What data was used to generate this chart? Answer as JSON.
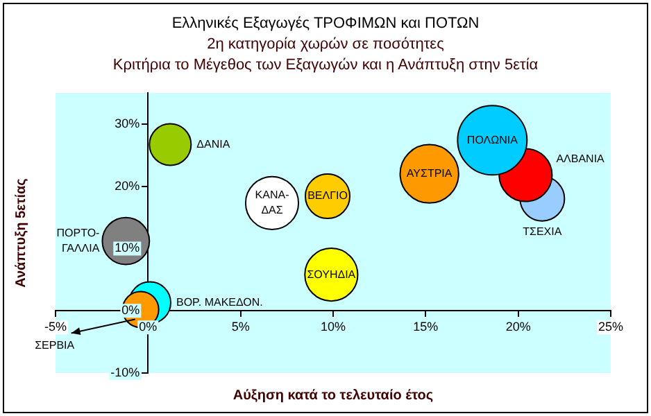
{
  "chart_data": {
    "type": "bubble",
    "title": "Ελληνικές Εξαγωγές ΤΡΟΦΙΜΩΝ και ΠΟΤΩΝ",
    "subtitle": "2η κατηγορία χωρών σε ποσότητες\nΚριτήρια το Μέγεθος των Εξαγωγών και η Ανάπτυξη στην 5ετία",
    "xlabel": "Αύξηση κατά το τελευταίο έτος",
    "ylabel": "Ανάπτυξη 5ετίας",
    "xlim": [
      -5,
      25
    ],
    "xticks": [
      {
        "value": -5,
        "label": "-5%"
      },
      {
        "value": 0,
        "label": "0%"
      },
      {
        "value": 5,
        "label": "5%"
      },
      {
        "value": 10,
        "label": "10%"
      },
      {
        "value": 15,
        "label": "15%"
      },
      {
        "value": 20,
        "label": "20%"
      },
      {
        "value": 25,
        "label": "25%"
      }
    ],
    "ylim": [
      -10,
      35
    ],
    "yticks": [
      {
        "value": -10,
        "label": "-10%"
      },
      {
        "value": 0,
        "label": "0%"
      },
      {
        "value": 10,
        "label": "10%"
      },
      {
        "value": 20,
        "label": "20%"
      },
      {
        "value": 30,
        "label": "30%"
      }
    ],
    "marker": "circle",
    "legend": false,
    "series": [
      {
        "name": "ΔΑΝΙΑ",
        "color": "#99cc00",
        "x": [
          1.2
        ],
        "values": [
          26.7
        ],
        "sizes": [
          0.36
        ]
      },
      {
        "name": "ΚΑΝΑ-\nΔΑΣ",
        "color": "#ffffff",
        "x": [
          6.7
        ],
        "values": [
          17.3
        ],
        "sizes": [
          0.58
        ]
      },
      {
        "name": "ΒΕΛΓΙΟ",
        "color": "#ffcc00",
        "x": [
          9.7
        ],
        "values": [
          18.4
        ],
        "sizes": [
          0.41
        ]
      },
      {
        "name": "ΣΟΥΗΔΙΑ",
        "color": "#ffff00",
        "x": [
          9.9
        ],
        "values": [
          5.8
        ],
        "sizes": [
          0.58
        ]
      },
      {
        "name": "ΑΥΣΤΡΙΑ",
        "color": "#ff9900",
        "x": [
          15.2
        ],
        "values": [
          22
        ],
        "sizes": [
          0.71
        ]
      },
      {
        "name": "ΠΟΛΩΝΙΑ",
        "color": "#00ccff",
        "x": [
          18.6
        ],
        "values": [
          27.4
        ],
        "sizes": [
          1
        ]
      },
      {
        "name": "ΑΛΒΑΝΙΑ",
        "color": "#ff0000",
        "x": [
          20.4
        ],
        "values": [
          21.8
        ],
        "sizes": [
          0.58
        ]
      },
      {
        "name": "ΤΣΕΧΙΑ",
        "color": "#99ccff",
        "x": [
          21.3
        ],
        "values": [
          18
        ],
        "sizes": [
          0.41
        ]
      },
      {
        "name": "ΠΟΡΤΟ-\nΓΑΛΛΙΑ",
        "color": "#808080",
        "x": [
          -1.2
        ],
        "values": [
          11.2
        ],
        "sizes": [
          0.46
        ]
      },
      {
        "name": "ΣΕΡΒΙΑ",
        "color": "#ff9900",
        "x": [
          -0.4
        ],
        "values": [
          0.2
        ],
        "sizes": [
          0.27
        ]
      },
      {
        "name": "ΒΟΡ. ΜΑΚΕΔΟΝ.",
        "color": "#00ffff",
        "x": [
          0.1
        ],
        "values": [
          1.3
        ],
        "sizes": [
          0.36
        ]
      }
    ]
  }
}
